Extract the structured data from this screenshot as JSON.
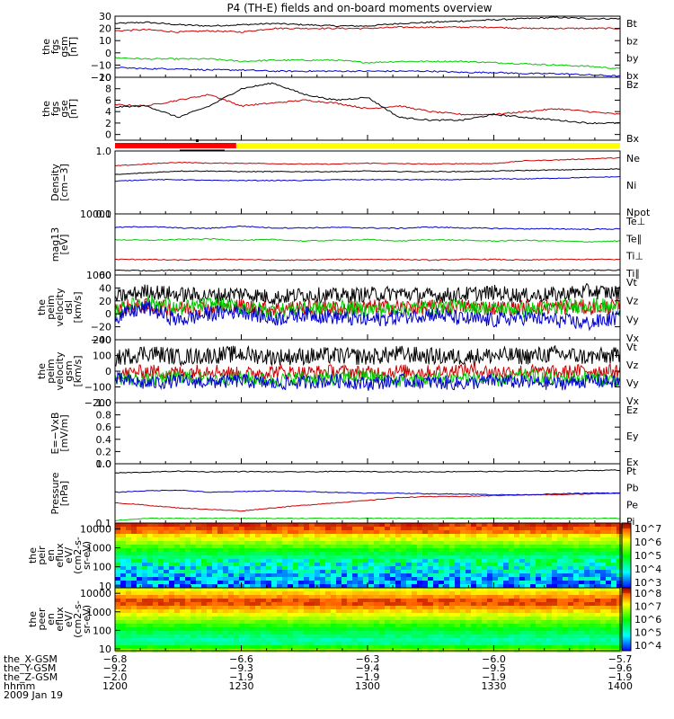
{
  "title": "P4 (TH-E) fields and on-board moments overview",
  "chart_data": [
    {
      "type": "line",
      "ylabel": [
        "the",
        "fgs",
        "gsm",
        "[nT]"
      ],
      "ylim": [
        -20,
        30
      ],
      "ylog": false,
      "yticks": [
        "30",
        "20",
        "10",
        "0",
        "−10",
        "−20"
      ],
      "ytick_values": [
        30,
        20,
        10,
        0,
        -10,
        -20
      ],
      "series": [
        {
          "name": "Bt",
          "color": "#000000",
          "values": [
            24,
            25,
            23,
            22,
            23,
            24,
            23,
            22,
            22,
            24,
            25,
            26,
            27,
            28,
            29,
            28,
            28
          ]
        },
        {
          "name": "bz",
          "color": "#cc0000",
          "values": [
            18,
            19,
            17,
            18,
            17,
            20,
            20,
            20,
            20,
            21,
            21,
            21,
            21,
            20,
            20,
            20,
            20
          ]
        },
        {
          "name": "by",
          "color": "#00cc00",
          "values": [
            -4,
            -5,
            -5,
            -5,
            -7,
            -6,
            -6,
            -6,
            -8,
            -7,
            -7,
            -7,
            -8,
            -9,
            -10,
            -11,
            -13
          ]
        },
        {
          "name": "bx",
          "color": "#0000cc",
          "values": [
            -12,
            -13,
            -13,
            -14,
            -14,
            -15,
            -15,
            -15,
            -15,
            -15,
            -15,
            -16,
            -16,
            -17,
            -17,
            -18,
            -19
          ]
        }
      ]
    },
    {
      "type": "line",
      "ylabel": [
        "the",
        "fgs",
        "gse",
        "[nT]"
      ],
      "ylim": [
        -1,
        10
      ],
      "ylog": false,
      "yticks": [
        "10",
        "8",
        "6",
        "4",
        "2",
        "0"
      ],
      "ytick_values": [
        10,
        8,
        6,
        4,
        2,
        0
      ],
      "series": [
        {
          "name": "Bz",
          "color": "#cc0000",
          "values": [
            5.2,
            5,
            6,
            7,
            5,
            5.5,
            6,
            5.5,
            4.5,
            5,
            4,
            3.5,
            3.5,
            4,
            4.5,
            4,
            3.5
          ]
        },
        {
          "name": "Bx",
          "color": "#000000",
          "values": [
            4.8,
            5,
            3,
            5,
            8,
            9,
            7,
            6,
            6.5,
            3,
            2.5,
            2.5,
            3.5,
            3,
            2.5,
            2,
            2
          ]
        }
      ]
    },
    {
      "type": "line",
      "ylabel": [
        "Density",
        "[cm−3]"
      ],
      "ylim": [
        0.1,
        1.0
      ],
      "ylog": true,
      "yticks": [
        "1.0",
        "0.1"
      ],
      "ytick_values": [
        1.0,
        0.1
      ],
      "series": [
        {
          "name": "Ne",
          "color": "#cc0000",
          "values": [
            0.58,
            0.62,
            0.66,
            0.64,
            0.64,
            0.63,
            0.62,
            0.62,
            0.64,
            0.63,
            0.62,
            0.63,
            0.63,
            0.7,
            0.72,
            0.75,
            0.78
          ]
        },
        {
          "name": "Ni",
          "color": "#000000",
          "values": [
            0.42,
            0.45,
            0.48,
            0.48,
            0.47,
            0.47,
            0.47,
            0.47,
            0.48,
            0.47,
            0.47,
            0.47,
            0.48,
            0.49,
            0.5,
            0.51,
            0.52
          ]
        },
        {
          "name": "Npot",
          "color": "#0000cc",
          "values": [
            0.33,
            0.35,
            0.35,
            0.34,
            0.34,
            0.34,
            0.34,
            0.35,
            0.35,
            0.35,
            0.35,
            0.35,
            0.36,
            0.36,
            0.37,
            0.38,
            0.39
          ]
        }
      ]
    },
    {
      "type": "line",
      "ylabel": [
        "mag13",
        "[eV]"
      ],
      "ylim": [
        1000,
        10000
      ],
      "ylog": true,
      "yticks": [
        "10000",
        "1000"
      ],
      "ytick_values": [
        10000,
        1000
      ],
      "series": [
        {
          "name": "Te⊥",
          "color": "#cc0000",
          "values": [
            1800,
            1800,
            1750,
            1800,
            1800,
            1750,
            1750,
            1800,
            1800,
            1800,
            1750,
            1800,
            1800,
            1750,
            1800,
            1800,
            1800
          ]
        },
        {
          "name": "Te∥",
          "color": "#000000",
          "values": [
            1200,
            1180,
            1200,
            1200,
            1200,
            1180,
            1200,
            1200,
            1200,
            1180,
            1200,
            1200,
            1200,
            1180,
            1200,
            1200,
            1200
          ]
        },
        {
          "name": "Ti⊥",
          "color": "#0000cc",
          "values": [
            6000,
            6200,
            5900,
            5800,
            6300,
            5900,
            5900,
            6000,
            5900,
            5800,
            6100,
            5900,
            5800,
            5700,
            5700,
            5600,
            5700
          ]
        },
        {
          "name": "Ti∥",
          "color": "#00cc00",
          "values": [
            3800,
            3700,
            3800,
            3900,
            3700,
            3800,
            3600,
            3700,
            3800,
            3600,
            3800,
            3700,
            3600,
            3700,
            3600,
            3500,
            3600
          ]
        }
      ]
    },
    {
      "type": "line",
      "ylabel": [
        "the",
        "peim",
        "velocity",
        "dsl",
        "[km/s]"
      ],
      "ylim": [
        -40,
        60
      ],
      "ylog": false,
      "yticks": [
        "60",
        "40",
        "20",
        "0",
        "−20",
        "−40"
      ],
      "ytick_values": [
        60,
        40,
        20,
        0,
        -20,
        -40
      ],
      "series": [
        {
          "name": "Vt",
          "color": "#000000",
          "values": [
            25,
            35,
            30,
            28,
            32,
            25,
            30,
            28,
            30,
            32,
            28,
            30,
            33,
            28,
            30,
            35,
            32
          ]
        },
        {
          "name": "Vz",
          "color": "#cc0000",
          "values": [
            10,
            12,
            8,
            10,
            12,
            8,
            10,
            9,
            10,
            11,
            10,
            12,
            9,
            10,
            11,
            10,
            12
          ]
        },
        {
          "name": "Vy",
          "color": "#00cc00",
          "values": [
            5,
            20,
            8,
            15,
            10,
            5,
            8,
            10,
            6,
            8,
            10,
            12,
            8,
            6,
            10,
            15,
            8
          ]
        },
        {
          "name": "Vx",
          "color": "#0000cc",
          "values": [
            -5,
            10,
            -10,
            0,
            5,
            -8,
            0,
            -5,
            -10,
            -5,
            0,
            -8,
            -10,
            -5,
            -10,
            -15,
            -5
          ]
        }
      ]
    },
    {
      "type": "line",
      "ylabel": [
        "the",
        "peim",
        "velocity",
        "gsm",
        "[km/s]"
      ],
      "ylim": [
        -200,
        200
      ],
      "ylog": false,
      "yticks": [
        "200",
        "100",
        "0",
        "−100",
        "−200"
      ],
      "ytick_values": [
        200,
        100,
        0,
        -100,
        -200
      ],
      "series": [
        {
          "name": "Vt",
          "color": "#000000",
          "values": [
            80,
            120,
            90,
            100,
            110,
            90,
            95,
            100,
            90,
            110,
            95,
            90,
            100,
            95,
            110,
            90,
            100
          ]
        },
        {
          "name": "Vz",
          "color": "#cc0000",
          "values": [
            -20,
            0,
            -10,
            10,
            -20,
            0,
            -10,
            0,
            -10,
            0,
            -5,
            10,
            -5,
            0,
            -10,
            5,
            0
          ]
        },
        {
          "name": "Vy",
          "color": "#00cc00",
          "values": [
            -40,
            -60,
            -30,
            -50,
            -40,
            -60,
            -40,
            -50,
            -30,
            -60,
            -50,
            -40,
            -60,
            -30,
            -50,
            -40,
            -60
          ]
        },
        {
          "name": "Vx",
          "color": "#0000cc",
          "values": [
            -50,
            -80,
            -60,
            -70,
            -60,
            -80,
            -70,
            -60,
            -80,
            -60,
            -70,
            -80,
            -60,
            -70,
            -80,
            -60,
            -70
          ]
        }
      ]
    },
    {
      "type": "line",
      "ylabel": [
        "E=−VxB",
        "[mV/m]"
      ],
      "ylim": [
        0,
        1.0
      ],
      "ylog": false,
      "yticks": [
        "1.0",
        "0.8",
        "0.6",
        "0.4",
        "0.2",
        "0.0"
      ],
      "ytick_values": [
        1.0,
        0.8,
        0.6,
        0.4,
        0.2,
        0.0
      ],
      "series": [
        {
          "name": "Ez",
          "color": "#cc0000",
          "values": []
        },
        {
          "name": "Ey",
          "color": "#00cc00",
          "values": []
        },
        {
          "name": "Ex",
          "color": "#0000cc",
          "values": []
        }
      ]
    },
    {
      "type": "line",
      "ylabel": [
        "Pressure",
        "[nPa]"
      ],
      "ylim": [
        0.1,
        1.0
      ],
      "ylog": true,
      "yticks": [
        "1.0",
        "0.1"
      ],
      "ytick_values": [
        1.0,
        0.1
      ],
      "series": [
        {
          "name": "Pt",
          "color": "#000000",
          "values": [
            0.7,
            0.72,
            0.75,
            0.73,
            0.74,
            0.73,
            0.73,
            0.74,
            0.74,
            0.73,
            0.73,
            0.74,
            0.74,
            0.75,
            0.75,
            0.77,
            0.78
          ]
        },
        {
          "name": "Pb",
          "color": "#cc0000",
          "values": [
            0.22,
            0.2,
            0.18,
            0.17,
            0.16,
            0.18,
            0.2,
            0.22,
            0.24,
            0.27,
            0.28,
            0.28,
            0.29,
            0.3,
            0.3,
            0.31,
            0.32
          ]
        },
        {
          "name": "Pe",
          "color": "#00cc00",
          "values": [
            0.11,
            0.12,
            0.12,
            0.12,
            0.12,
            0.12,
            0.12,
            0.12,
            0.12,
            0.12,
            0.12,
            0.12,
            0.12,
            0.12,
            0.12,
            0.12,
            0.12
          ]
        },
        {
          "name": "Pi",
          "color": "#0000cc",
          "values": [
            0.33,
            0.35,
            0.36,
            0.33,
            0.34,
            0.35,
            0.34,
            0.33,
            0.32,
            0.32,
            0.31,
            0.31,
            0.3,
            0.3,
            0.31,
            0.32,
            0.32
          ]
        }
      ]
    },
    {
      "type": "heatmap",
      "ylabel": [
        "the",
        "peir",
        "en",
        "eflux",
        "eV/",
        "(cm2-s-",
        "sr-eV)"
      ],
      "yticks": [
        "10000",
        "1000",
        "100",
        "10"
      ],
      "colorbar_ticks": [
        "10^7",
        "10^6",
        "10^5",
        "10^4",
        "10^3"
      ]
    },
    {
      "type": "heatmap",
      "ylabel": [
        "the",
        "peer",
        "en",
        "eflux",
        "eV/",
        "(cm2-s-",
        "sr-eV)"
      ],
      "yticks": [
        "10000",
        "1000",
        "100",
        "10"
      ],
      "colorbar_ticks": [
        "10^8",
        "10^7",
        "10^6",
        "10^5",
        "10^4"
      ]
    }
  ],
  "status_bar": {
    "colors": [
      "#ff0000",
      "#ffff00"
    ],
    "split_fraction": 0.24
  },
  "footer": {
    "row_labels": [
      "the_X-GSM",
      "the_Y-GSM",
      "the_Z-GSM",
      "hhmm",
      "2009 Jan 19"
    ],
    "columns": [
      {
        "values": [
          "−6.8",
          "−9.2",
          "−2.0",
          "1200"
        ]
      },
      {
        "values": [
          "−6.6",
          "−9.3",
          "−1.9",
          "1230"
        ]
      },
      {
        "values": [
          "−6.3",
          "−9.4",
          "−1.9",
          "1300"
        ]
      },
      {
        "values": [
          "−6.0",
          "−9.5",
          "−1.9",
          "1330"
        ]
      },
      {
        "values": [
          "−5.7",
          "−9.6",
          "−1.9",
          "1400"
        ]
      }
    ]
  }
}
